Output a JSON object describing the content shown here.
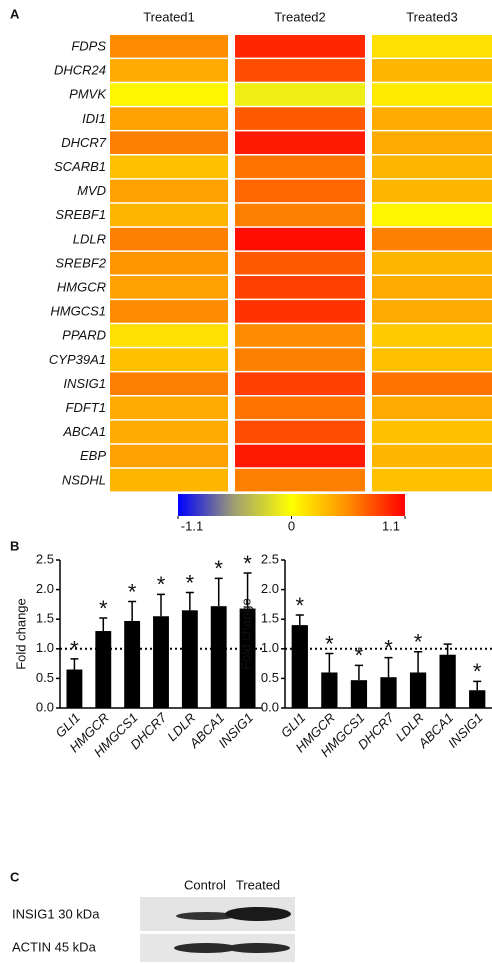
{
  "panel_labels": [
    "A",
    "B",
    "C"
  ],
  "chart_data": [
    {
      "type": "heatmap",
      "columns": [
        "Treated1",
        "Treated2",
        "Treated3"
      ],
      "rows": [
        "FDPS",
        "DHCR24",
        "PMVK",
        "IDI1",
        "DHCR7",
        "SCARB1",
        "MVD",
        "SREBF1",
        "LDLR",
        "SREBF2",
        "HMGCR",
        "HMGCS1",
        "PPARD",
        "CYP39A1",
        "INSIG1",
        "FDFT1",
        "ABCA1",
        "EBP",
        "NSDHL"
      ],
      "values": [
        [
          0.55,
          0.95,
          0.15
        ],
        [
          0.4,
          0.8,
          0.35
        ],
        [
          0.05,
          -0.1,
          0.1
        ],
        [
          0.45,
          0.75,
          0.4
        ],
        [
          0.6,
          1.0,
          0.4
        ],
        [
          0.3,
          0.65,
          0.35
        ],
        [
          0.45,
          0.7,
          0.35
        ],
        [
          0.35,
          0.6,
          0.05
        ],
        [
          0.6,
          1.05,
          0.6
        ],
        [
          0.5,
          0.75,
          0.35
        ],
        [
          0.45,
          0.85,
          0.4
        ],
        [
          0.55,
          0.9,
          0.4
        ],
        [
          0.15,
          0.55,
          0.25
        ],
        [
          0.3,
          0.6,
          0.3
        ],
        [
          0.6,
          0.85,
          0.65
        ],
        [
          0.4,
          0.65,
          0.4
        ],
        [
          0.4,
          0.8,
          0.3
        ],
        [
          0.45,
          1.0,
          0.35
        ],
        [
          0.35,
          0.6,
          0.3
        ]
      ],
      "clim": [
        -1.1,
        1.1
      ],
      "colorbar_ticks": [
        -1.1,
        0,
        1.1
      ],
      "colormap": [
        "#0000ff",
        "#a0a070",
        "#ffff00",
        "#ff8c00",
        "#ff0000"
      ]
    },
    {
      "type": "bar",
      "y_label": "Fold change",
      "color": "#000000",
      "categories": [
        "GLI1",
        "HMGCR",
        "HMGCS1",
        "DHCR7",
        "LDLR",
        "ABCA1",
        "INSIG1"
      ],
      "values": [
        0.65,
        1.3,
        1.47,
        1.55,
        1.65,
        1.72,
        1.68
      ],
      "errors": [
        0.18,
        0.22,
        0.33,
        0.37,
        0.3,
        0.47,
        0.6
      ],
      "significance": [
        "*",
        "*",
        "*",
        "*",
        "*",
        "*",
        "*"
      ],
      "reference_line": 1,
      "ylim": [
        0,
        2.5
      ],
      "yticks": [
        {
          "value": 0,
          "label": "0.0"
        },
        0.5,
        {
          "value": 1,
          "label": "1.0"
        },
        1.5,
        {
          "value": 2,
          "label": "2.0"
        },
        2.5
      ]
    },
    {
      "type": "bar",
      "y_label": "Fold change",
      "color": "#000000",
      "categories": [
        "GLI1",
        "HMGCR",
        "HMGCS1",
        "DHCR7",
        "LDLR",
        "ABCA1",
        "INSIG1"
      ],
      "values": [
        1.4,
        0.6,
        0.47,
        0.52,
        0.6,
        0.9,
        0.3
      ],
      "errors": [
        0.17,
        0.32,
        0.25,
        0.33,
        0.35,
        0.18,
        0.15
      ],
      "significance": [
        "*",
        "*",
        "*",
        "*",
        "*",
        null,
        "*"
      ],
      "reference_line": 1,
      "ylim": [
        0,
        2.5
      ],
      "yticks": [
        {
          "value": 0,
          "label": "0.0"
        },
        0.5,
        {
          "value": 1,
          "label": "1.0"
        },
        1.5,
        {
          "value": 2,
          "label": "2.0"
        },
        2.5
      ]
    }
  ],
  "blot": {
    "lanes": [
      "Control",
      "Treated"
    ],
    "rows": [
      "INSIG1 30 kDa",
      "ACTIN 45 kDa"
    ]
  }
}
